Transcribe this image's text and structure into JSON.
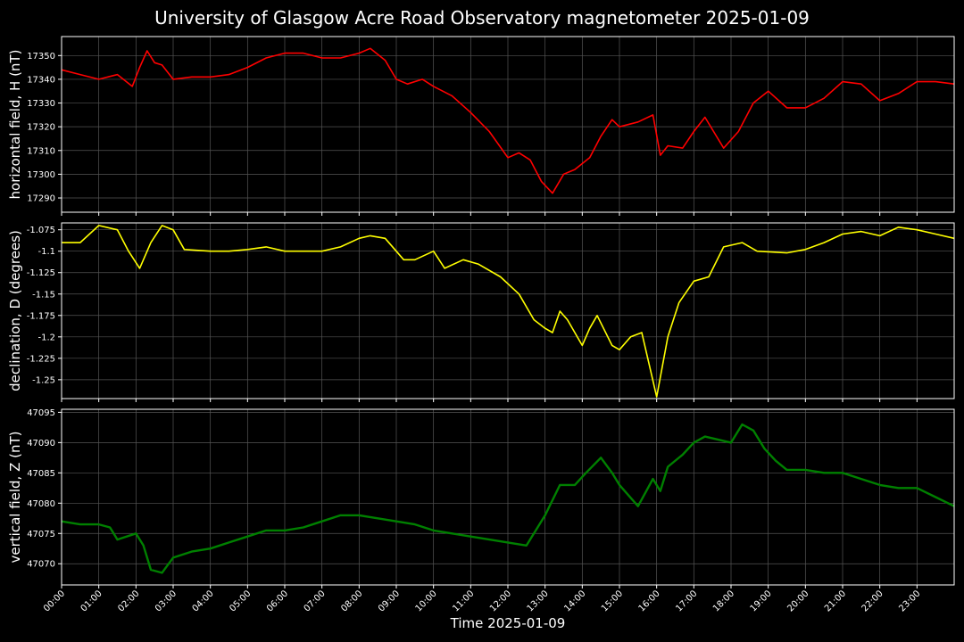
{
  "header": {
    "title": "University of Glasgow Acre Road Observatory magnetometer 2025-01-09"
  },
  "xaxis": {
    "label": "Time 2025-01-09",
    "range_hours": [
      0,
      24
    ],
    "tick_labels": [
      "00:00",
      "01:00",
      "02:00",
      "03:00",
      "04:00",
      "05:00",
      "06:00",
      "07:00",
      "08:00",
      "09:00",
      "10:00",
      "11:00",
      "12:00",
      "13:00",
      "14:00",
      "15:00",
      "16:00",
      "17:00",
      "18:00",
      "19:00",
      "20:00",
      "21:00",
      "22:00",
      "23:00"
    ]
  },
  "colors": {
    "background": "#000000",
    "grid": "#555555",
    "axes": "#ffffff"
  },
  "chart_data": [
    {
      "type": "line",
      "ylabel": "horizontal field, H (nT)",
      "color": "#ff0000",
      "ylim": [
        17284,
        17358
      ],
      "yticks": [
        17290,
        17300,
        17310,
        17320,
        17330,
        17340,
        17350
      ],
      "grid": true,
      "x_unit": "hours",
      "x": [
        0,
        0.5,
        1,
        1.5,
        1.9,
        2.1,
        2.3,
        2.5,
        2.7,
        3,
        3.5,
        4,
        4.5,
        5,
        5.5,
        6,
        6.5,
        7,
        7.5,
        8,
        8.3,
        8.7,
        9,
        9.3,
        9.7,
        10,
        10.5,
        11,
        11.5,
        12,
        12.3,
        12.6,
        12.9,
        13.2,
        13.5,
        13.8,
        14.2,
        14.5,
        14.8,
        15,
        15.5,
        15.9,
        16.1,
        16.3,
        16.7,
        17,
        17.3,
        17.8,
        18.2,
        18.6,
        19,
        19.5,
        20,
        20.5,
        21,
        21.5,
        22,
        22.5,
        23,
        23.5,
        24
      ],
      "y": [
        17344,
        17342,
        17340,
        17342,
        17337,
        17345,
        17352,
        17347,
        17346,
        17340,
        17341,
        17341,
        17342,
        17345,
        17349,
        17351,
        17351,
        17349,
        17349,
        17351,
        17353,
        17348,
        17340,
        17338,
        17340,
        17337,
        17333,
        17326,
        17318,
        17307,
        17309,
        17306,
        17297,
        17292,
        17300,
        17302,
        17307,
        17316,
        17323,
        17320,
        17322,
        17325,
        17308,
        17312,
        17311,
        17318,
        17324,
        17311,
        17318,
        17330,
        17335,
        17328,
        17328,
        17332,
        17339,
        17338,
        17331,
        17334,
        17339,
        17339,
        17338
      ]
    },
    {
      "type": "line",
      "ylabel": "declination, D (degrees)",
      "color": "#ffff00",
      "ylim": [
        -1.272,
        -1.067
      ],
      "yticks": [
        -1.075,
        -1.1,
        -1.125,
        -1.15,
        -1.175,
        -1.2,
        -1.225,
        -1.25
      ],
      "grid": true,
      "x_unit": "hours",
      "x": [
        0,
        0.5,
        1,
        1.5,
        1.8,
        2.1,
        2.4,
        2.7,
        3,
        3.3,
        4,
        4.5,
        5,
        5.5,
        6,
        7,
        7.5,
        8,
        8.3,
        8.7,
        9.2,
        9.5,
        10,
        10.3,
        10.8,
        11.2,
        11.8,
        12.3,
        12.7,
        13,
        13.2,
        13.4,
        13.6,
        14,
        14.2,
        14.4,
        14.8,
        15,
        15.3,
        15.6,
        16,
        16.3,
        16.6,
        17,
        17.4,
        17.8,
        18.3,
        18.7,
        19.5,
        20,
        20.5,
        21,
        21.5,
        22,
        22.5,
        23,
        23.5,
        24
      ],
      "y": [
        -1.09,
        -1.09,
        -1.07,
        -1.075,
        -1.1,
        -1.12,
        -1.09,
        -1.07,
        -1.075,
        -1.098,
        -1.1,
        -1.1,
        -1.098,
        -1.095,
        -1.1,
        -1.1,
        -1.095,
        -1.085,
        -1.082,
        -1.085,
        -1.11,
        -1.11,
        -1.1,
        -1.12,
        -1.11,
        -1.115,
        -1.13,
        -1.15,
        -1.18,
        -1.19,
        -1.195,
        -1.17,
        -1.18,
        -1.21,
        -1.19,
        -1.175,
        -1.21,
        -1.215,
        -1.2,
        -1.195,
        -1.27,
        -1.2,
        -1.16,
        -1.135,
        -1.13,
        -1.095,
        -1.09,
        -1.1,
        -1.102,
        -1.098,
        -1.09,
        -1.08,
        -1.077,
        -1.082,
        -1.072,
        -1.075,
        -1.08,
        -1.085
      ]
    },
    {
      "type": "line",
      "ylabel": "vertical field, Z (nT)",
      "color": "#008000",
      "ylim": [
        47066.5,
        47095.5
      ],
      "yticks": [
        47070,
        47075,
        47080,
        47085,
        47090,
        47095
      ],
      "grid": true,
      "x_unit": "hours",
      "x": [
        0,
        0.5,
        1,
        1.3,
        1.5,
        2,
        2.2,
        2.4,
        2.7,
        3,
        3.5,
        4,
        4.5,
        5,
        5.5,
        6,
        6.5,
        7,
        7.5,
        8,
        8.5,
        9,
        9.5,
        10,
        10.5,
        11,
        11.5,
        12,
        12.5,
        12.8,
        13,
        13.4,
        13.8,
        14.1,
        14.5,
        14.8,
        15,
        15.5,
        15.9,
        16.1,
        16.3,
        16.7,
        17,
        17.3,
        18,
        18.3,
        18.6,
        18.9,
        19.2,
        19.5,
        20,
        20.5,
        21,
        21.5,
        22,
        22.5,
        23,
        23.5,
        24
      ],
      "y": [
        47077,
        47076.5,
        47076.5,
        47076,
        47074,
        47075,
        47073,
        47069,
        47068.5,
        47071,
        47072,
        47072.5,
        47073.5,
        47074.5,
        47075.5,
        47075.5,
        47076,
        47077,
        47078,
        47078,
        47077.5,
        47077,
        47076.5,
        47075.5,
        47075,
        47074.5,
        47074,
        47073.5,
        47073,
        47076,
        47078,
        47083,
        47083,
        47085,
        47087.5,
        47085,
        47083,
        47079.5,
        47084,
        47082,
        47086,
        47088,
        47090,
        47091,
        47090,
        47093,
        47092,
        47089,
        47087,
        47085.5,
        47085.5,
        47085,
        47085,
        47084,
        47083,
        47082.5,
        47082.5,
        47081,
        47079.5
      ]
    }
  ]
}
